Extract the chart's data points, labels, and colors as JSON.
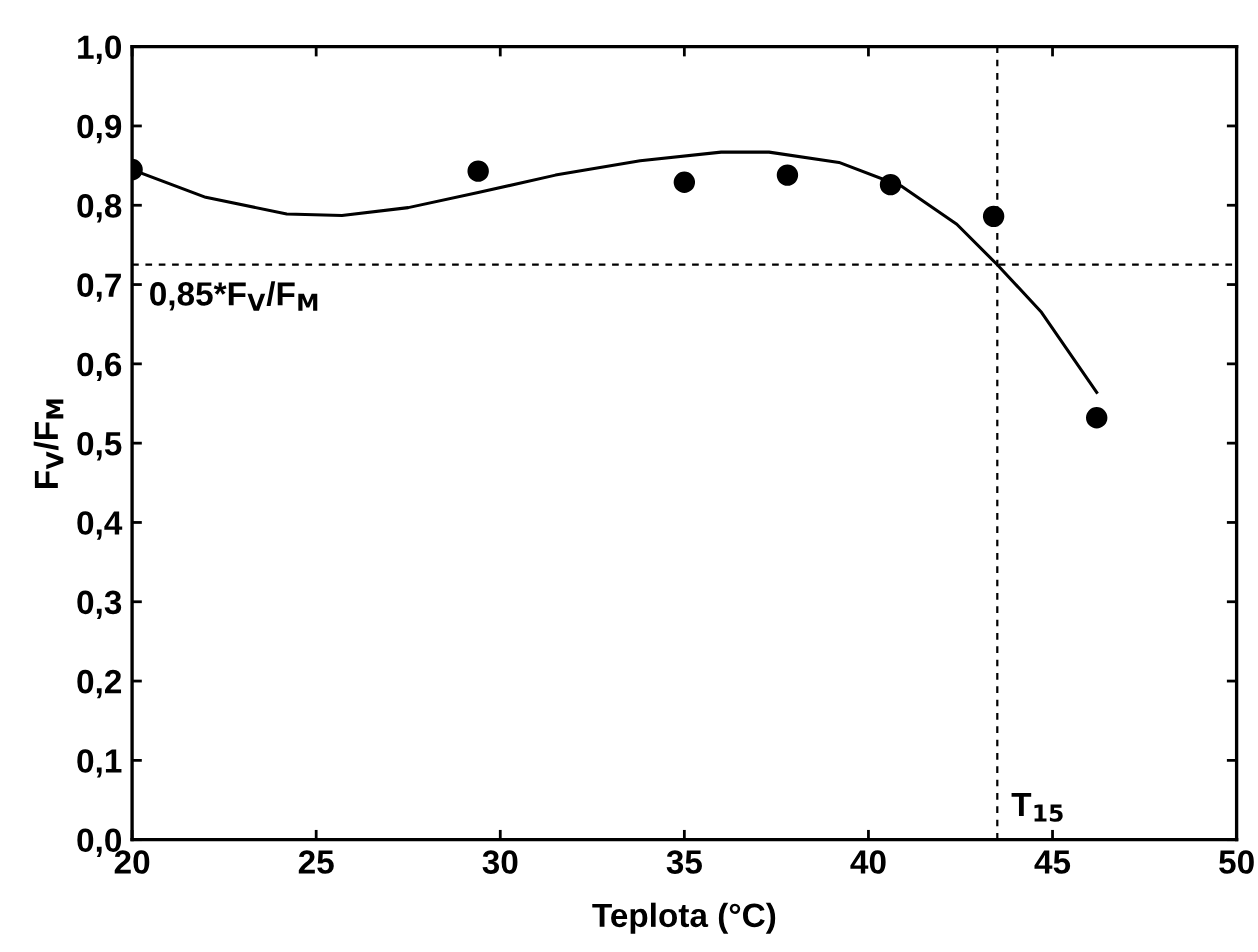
{
  "chart_data": {
    "type": "scatter",
    "xlabel": "Teplota (°C)",
    "ylabel": "F$_{V}$/F$_{M}$",
    "x": [
      20.0,
      29.4,
      35.0,
      37.8,
      40.6,
      43.4,
      46.2
    ],
    "series": [
      {
        "color": "#000000",
        "marker": "circle",
        "values": [
          0.845,
          0.843,
          0.829,
          0.838,
          0.826,
          0.786,
          0.532
        ]
      },
      {
        "type": "line",
        "color": "#000000",
        "line_style": "solid",
        "x": [
          20.0,
          22.0,
          24.2,
          25.7,
          27.5,
          29.4,
          31.5,
          33.8,
          36.0,
          37.3,
          39.2,
          40.9,
          42.4,
          43.5,
          44.7,
          46.2
        ],
        "values": [
          0.845,
          0.81,
          0.789,
          0.787,
          0.797,
          0.816,
          0.838,
          0.856,
          0.867,
          0.867,
          0.854,
          0.824,
          0.776,
          0.725,
          0.665,
          0.564
        ]
      }
    ],
    "ref_lines": [
      {
        "axis": "y",
        "value": 0.725,
        "label": "0,85*F$_{V}$/F$_{M}$",
        "color": "#000000",
        "line_style": "dashed"
      },
      {
        "axis": "x",
        "value": 43.5,
        "label": "T$_{15}$",
        "color": "#000000",
        "line_style": "dashed"
      }
    ],
    "xlim": [
      20,
      50
    ],
    "xticks": [
      20,
      25,
      30,
      35,
      40,
      45,
      50
    ],
    "ylim": [
      0,
      1
    ],
    "yticks": [
      {
        "value": 0,
        "label": "0,0"
      },
      {
        "value": 0.1,
        "label": "0,1"
      },
      {
        "value": 0.2,
        "label": "0,2"
      },
      {
        "value": 0.3,
        "label": "0,3"
      },
      {
        "value": 0.4,
        "label": "0,4"
      },
      {
        "value": 0.5,
        "label": "0,5"
      },
      {
        "value": 0.6,
        "label": "0,6"
      },
      {
        "value": 0.7,
        "label": "0,7"
      },
      {
        "value": 0.8,
        "label": "0,8"
      },
      {
        "value": 0.9,
        "label": "0,9"
      },
      {
        "value": 1,
        "label": "1,0"
      }
    ],
    "grid": false,
    "legend": false
  }
}
